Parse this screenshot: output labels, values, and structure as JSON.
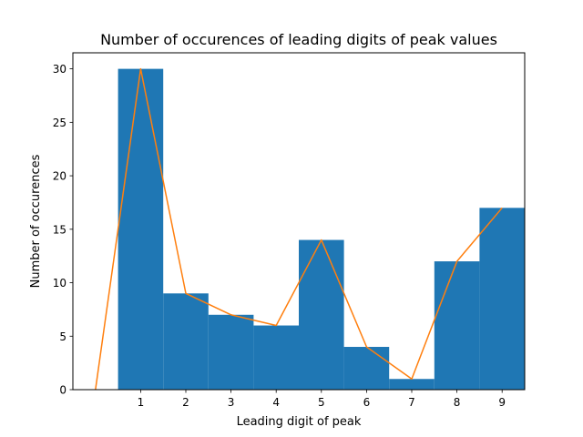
{
  "chart_data": {
    "type": "bar",
    "title": "Number of occurences of leading digits of peak values",
    "xlabel": "Leading digit of peak",
    "ylabel": "Number of occurences",
    "categories": [
      "1",
      "2",
      "3",
      "4",
      "5",
      "6",
      "7",
      "8",
      "9"
    ],
    "x_values": [
      1,
      2,
      3,
      4,
      5,
      6,
      7,
      8,
      9
    ],
    "xlim": [
      -0.5,
      9.5
    ],
    "ylim": [
      0,
      31.5
    ],
    "yticks": [
      0,
      5,
      10,
      15,
      20,
      25,
      30
    ],
    "series": [
      {
        "name": "histogram",
        "kind": "bar",
        "color": "#1f77b4",
        "values": [
          30,
          9,
          7,
          6,
          14,
          4,
          1,
          12,
          17
        ]
      },
      {
        "name": "line",
        "kind": "line",
        "color": "#ff7f0e",
        "x": [
          0,
          1,
          2,
          3,
          4,
          5,
          6,
          7,
          8,
          9
        ],
        "values": [
          0,
          30,
          9,
          7,
          6,
          14,
          4,
          1,
          12,
          17
        ]
      }
    ]
  }
}
